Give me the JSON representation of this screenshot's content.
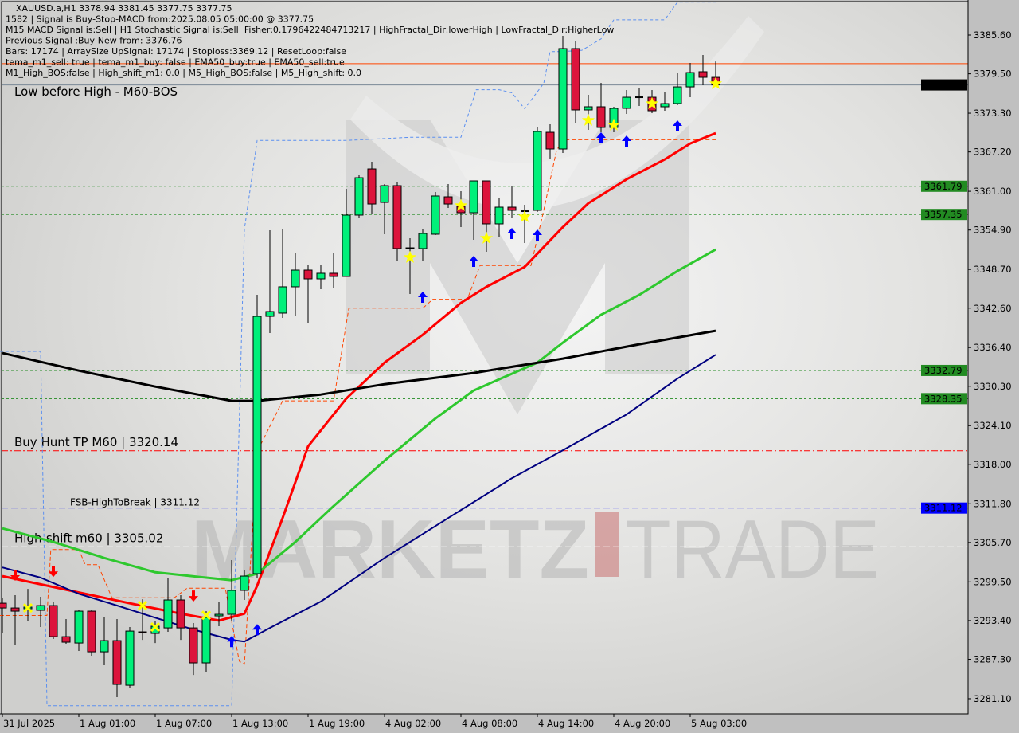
{
  "header": {
    "symbol_line": "XAUUSD.a,H1  3378.94 3381.45 3377.75 3377.75",
    "lines": [
      "1582 | Signal is Buy-Stop-MACD from:2025.08.05 05:00:00 @ 3377.75",
      "M15 MACD Signal is:Sell | H1 Stochastic Signal is:Sell| Fisher:0.1796422484713217 | HighFractal_Dir:lowerHigh | LowFractal_Dir:HigherLow",
      "Previous Signal :Buy-New from: 3376.76",
      "Bars: 17174 | ArraySize UpSignal: 17174 | Stoploss:3369.12 | ResetLoop:false",
      "tema_m1_sell: true | tema_m1_buy: false | EMA50_buy:true | EMA50_sell:true",
      "M1_High_BOS:false | High_shift_m1: 0.0 | M5_High_BOS:false | M5_High_shift: 0.0"
    ],
    "overlay_label": "Low before High - M60-BOS"
  },
  "watermark": {
    "text_left": "MARKETZ",
    "text_right": "TRADE"
  },
  "colors": {
    "bull": "#00f07a",
    "bear": "#dc143c",
    "ema_red": "#ff0000",
    "ema_green": "#2ec82e",
    "ema_navy": "#000080",
    "ema_black": "#000000",
    "level_green": "#228b22",
    "level_blue": "#0000ff",
    "level_red": "#ff0000",
    "stop_orange": "#ff4500",
    "envelope_blue": "#5b8ff0"
  },
  "chart_data": {
    "type": "candlestick",
    "symbol": "XAUUSD.a",
    "timeframe": "H1",
    "ylim": [
      3278.0,
      3391.0
    ],
    "grid": false,
    "y_ticks": [
      "3385.60",
      "3379.50",
      "3373.30",
      "3367.20",
      "3361.00",
      "3354.90",
      "3348.70",
      "3342.60",
      "3336.40",
      "3330.30",
      "3324.10",
      "3318.00",
      "3311.80",
      "3305.70",
      "3299.50",
      "3293.40",
      "3287.30",
      "3281.10"
    ],
    "x_labels": [
      {
        "bar": 0,
        "label": "31 Jul 2025"
      },
      {
        "bar": 6,
        "label": "1 Aug 01:00"
      },
      {
        "bar": 12,
        "label": "1 Aug 07:00"
      },
      {
        "bar": 18,
        "label": "1 Aug 13:00"
      },
      {
        "bar": 24,
        "label": "1 Aug 19:00"
      },
      {
        "bar": 30,
        "label": "4 Aug 02:00"
      },
      {
        "bar": 36,
        "label": "4 Aug 08:00"
      },
      {
        "bar": 42,
        "label": "4 Aug 14:00"
      },
      {
        "bar": 48,
        "label": "4 Aug 20:00"
      },
      {
        "bar": 54,
        "label": "5 Aug 03:00"
      }
    ],
    "candles": [
      [
        3296.14,
        3297.02,
        3291.38,
        3295.39
      ],
      [
        3295.39,
        3297.4,
        3289.62,
        3294.89
      ],
      [
        3295.27,
        3298.4,
        3293.26,
        3295.52
      ],
      [
        3295.02,
        3297.15,
        3292.38,
        3295.77
      ],
      [
        3295.77,
        3296.4,
        3290.5,
        3290.87
      ],
      [
        3290.87,
        3293.64,
        3289.75,
        3290.0
      ],
      [
        3289.87,
        3295.14,
        3288.62,
        3294.89
      ],
      [
        3294.89,
        3295.02,
        3287.87,
        3288.49
      ],
      [
        3288.49,
        3293.89,
        3286.36,
        3290.25
      ],
      [
        3290.25,
        3293.64,
        3281.34,
        3283.35
      ],
      [
        3283.22,
        3292.38,
        3282.85,
        3291.75
      ],
      [
        3291.63,
        3296.77,
        3290.37,
        3291.5
      ],
      [
        3291.38,
        3293.26,
        3289.87,
        3292.51
      ],
      [
        3292.25,
        3300.16,
        3291.63,
        3296.65
      ],
      [
        3296.65,
        3297.4,
        3290.37,
        3292.25
      ],
      [
        3292.25,
        3293.01,
        3284.85,
        3286.74
      ],
      [
        3286.74,
        3294.89,
        3285.36,
        3293.89
      ],
      [
        3294.14,
        3296.4,
        3292.51,
        3294.39
      ],
      [
        3294.39,
        3302.92,
        3293.39,
        3298.16
      ],
      [
        3298.16,
        3301.42,
        3296.65,
        3300.41
      ],
      [
        3300.79,
        3344.7,
        3300.16,
        3341.31
      ],
      [
        3341.31,
        3354.86,
        3338.68,
        3342.07
      ],
      [
        3341.82,
        3354.99,
        3341.06,
        3345.96
      ],
      [
        3345.96,
        3351.23,
        3341.31,
        3348.59
      ],
      [
        3348.59,
        3349.47,
        3340.31,
        3347.21
      ],
      [
        3347.21,
        3349.47,
        3345.58,
        3348.09
      ],
      [
        3348.09,
        3351.35,
        3345.83,
        3347.59
      ],
      [
        3347.59,
        3361.39,
        3347.59,
        3357.25
      ],
      [
        3357.25,
        3363.52,
        3356.87,
        3363.14
      ],
      [
        3364.52,
        3365.65,
        3357.5,
        3359.0
      ],
      [
        3359.25,
        3362.14,
        3354.24,
        3361.89
      ],
      [
        3361.89,
        3362.39,
        3350.1,
        3351.98
      ],
      [
        3352.1,
        3353.61,
        3344.83,
        3351.98
      ],
      [
        3351.98,
        3355.11,
        3349.97,
        3354.36
      ],
      [
        3354.24,
        3360.89,
        3354.11,
        3360.26
      ],
      [
        3360.13,
        3362.14,
        3358.38,
        3359.0
      ],
      [
        3358.63,
        3361.01,
        3355.36,
        3357.62
      ],
      [
        3357.62,
        3362.64,
        3353.36,
        3362.64
      ],
      [
        3362.64,
        3362.64,
        3351.48,
        3355.87
      ],
      [
        3355.87,
        3359.88,
        3353.86,
        3358.5
      ],
      [
        3358.5,
        3361.89,
        3356.87,
        3358.0
      ],
      [
        3357.87,
        3358.88,
        3352.86,
        3357.87
      ],
      [
        3358.0,
        3371.05,
        3357.75,
        3370.42
      ],
      [
        3370.29,
        3371.55,
        3366.03,
        3367.66
      ],
      [
        3367.66,
        3385.47,
        3367.03,
        3383.47
      ],
      [
        3383.47,
        3384.72,
        3371.67,
        3373.81
      ],
      [
        3373.81,
        3376.19,
        3370.67,
        3374.31
      ],
      [
        3374.31,
        3378.07,
        3370.29,
        3371.05
      ],
      [
        3371.05,
        3374.31,
        3370.29,
        3374.06
      ],
      [
        3374.06,
        3376.94,
        3373.18,
        3375.81
      ],
      [
        3375.81,
        3377.19,
        3374.43,
        3375.81
      ],
      [
        3375.81,
        3376.94,
        3373.3,
        3373.68
      ],
      [
        3374.31,
        3376.56,
        3373.68,
        3374.81
      ],
      [
        3374.81,
        3379.7,
        3374.56,
        3377.44
      ],
      [
        3377.44,
        3381.21,
        3375.81,
        3379.7
      ],
      [
        3379.83,
        3382.46,
        3377.69,
        3378.95
      ],
      [
        3378.94,
        3381.45,
        3377.75,
        3377.75
      ]
    ],
    "candle_fields": [
      "open",
      "high",
      "low",
      "close"
    ],
    "moving_averages": [
      {
        "color": "#ff0000",
        "points": [
          [
            0,
            3300.4
          ],
          [
            10,
            3296.12
          ],
          [
            14,
            3294.5
          ],
          [
            17,
            3293.4
          ],
          [
            19,
            3294.5
          ],
          [
            20,
            3298.9
          ],
          [
            22,
            3309.55
          ],
          [
            24,
            3320.84
          ],
          [
            27,
            3328.37
          ],
          [
            30,
            3334.02
          ],
          [
            33,
            3338.41
          ],
          [
            36,
            3343.43
          ],
          [
            38,
            3345.96
          ],
          [
            41,
            3349.08
          ],
          [
            44,
            3355.35
          ],
          [
            46,
            3359.12
          ],
          [
            49,
            3362.88
          ],
          [
            52,
            3366.02
          ],
          [
            54,
            3368.53
          ],
          [
            56,
            3370.16
          ]
        ]
      },
      {
        "color": "#2ec82e",
        "points": [
          [
            0,
            3307.92
          ],
          [
            4,
            3305.78
          ],
          [
            8,
            3303.27
          ],
          [
            12,
            3301.01
          ],
          [
            16,
            3300.16
          ],
          [
            18,
            3299.76
          ],
          [
            20,
            3300.79
          ],
          [
            23,
            3305.78
          ],
          [
            26,
            3311.43
          ],
          [
            30,
            3318.58
          ],
          [
            34,
            3325.23
          ],
          [
            37,
            3329.63
          ],
          [
            42,
            3334.02
          ],
          [
            44,
            3337.16
          ],
          [
            47,
            3341.55
          ],
          [
            50,
            3344.69
          ],
          [
            53,
            3348.45
          ],
          [
            56,
            3351.84
          ]
        ]
      },
      {
        "color": "#000080",
        "points": [
          [
            0,
            3301.77
          ],
          [
            3,
            3300.16
          ],
          [
            6,
            3297.62
          ],
          [
            9,
            3295.77
          ],
          [
            12,
            3293.86
          ],
          [
            15,
            3291.98
          ],
          [
            18,
            3290.37
          ],
          [
            19,
            3290.1
          ],
          [
            21,
            3292.25
          ],
          [
            25,
            3296.4
          ],
          [
            30,
            3303.27
          ],
          [
            35,
            3309.55
          ],
          [
            40,
            3315.82
          ],
          [
            44,
            3320.22
          ],
          [
            49,
            3325.86
          ],
          [
            53,
            3331.51
          ],
          [
            56,
            3335.27
          ]
        ]
      },
      {
        "color": "#000000",
        "points": [
          [
            0,
            3335.53
          ],
          [
            6,
            3332.76
          ],
          [
            12,
            3330.25
          ],
          [
            18,
            3328.0
          ],
          [
            20,
            3328.0
          ],
          [
            25,
            3329.0
          ],
          [
            30,
            3330.63
          ],
          [
            37,
            3332.39
          ],
          [
            44,
            3334.65
          ],
          [
            50,
            3336.91
          ],
          [
            56,
            3339.04
          ]
        ]
      }
    ],
    "stop_line": [
      [
        -0.2,
        3294.2
      ],
      [
        3.5,
        3294.2
      ],
      [
        3.8,
        3304.6
      ],
      [
        6,
        3304.6
      ],
      [
        6.5,
        3302.2
      ],
      [
        7.5,
        3302.2
      ],
      [
        8.6,
        3297.0
      ],
      [
        13.5,
        3297.0
      ],
      [
        14.5,
        3298.5
      ],
      [
        17.5,
        3298.5
      ],
      [
        18.6,
        3287.0
      ],
      [
        19,
        3286.5
      ],
      [
        20,
        3320.0
      ],
      [
        22,
        3328.0
      ],
      [
        26,
        3328.0
      ],
      [
        27.2,
        3342.6
      ],
      [
        33,
        3342.6
      ],
      [
        33.8,
        3344.0
      ],
      [
        36.5,
        3344.0
      ],
      [
        37.5,
        3349.3
      ],
      [
        41.5,
        3349.3
      ],
      [
        42.5,
        3358.0
      ],
      [
        43.5,
        3367.4
      ],
      [
        44,
        3369.12
      ],
      [
        56,
        3369.12
      ]
    ],
    "envelope_line": [
      [
        -0.2,
        3335.8
      ],
      [
        3,
        3335.8
      ],
      [
        3.5,
        3280.0
      ],
      [
        18,
        3280.0
      ],
      [
        19,
        3355.0
      ],
      [
        20,
        3369.0
      ],
      [
        27,
        3369.0
      ],
      [
        32,
        3369.5
      ],
      [
        36,
        3369.5
      ],
      [
        37.2,
        3377.0
      ],
      [
        39,
        3377.0
      ],
      [
        40,
        3376.5
      ],
      [
        41,
        3374.0
      ],
      [
        42.5,
        3378.0
      ],
      [
        43,
        3383.0
      ],
      [
        44,
        3383.0
      ],
      [
        45.5,
        3383.2
      ],
      [
        47,
        3385.0
      ],
      [
        48,
        3388.0
      ],
      [
        52,
        3388.0
      ],
      [
        53,
        3390.8
      ],
      [
        56,
        3390.8
      ]
    ],
    "levels": [
      {
        "price": 3381.1,
        "color": "#ff4500",
        "style": "solid"
      },
      {
        "price": 3377.75,
        "color": "#7a8896",
        "style": "solid",
        "badge": "3377.75",
        "badge_bg": "#000000"
      },
      {
        "price": 3361.79,
        "color": "#228b22",
        "style": "dotted",
        "badge": "3361.79",
        "badge_bg": "#228b22"
      },
      {
        "price": 3357.35,
        "color": "#228b22",
        "style": "dotted",
        "badge": "3357.35",
        "badge_bg": "#228b22"
      },
      {
        "price": 3332.79,
        "color": "#228b22",
        "style": "dotted",
        "badge": "3332.79",
        "badge_bg": "#228b22"
      },
      {
        "price": 3328.35,
        "color": "#228b22",
        "style": "dotted",
        "badge": "3328.35",
        "badge_bg": "#228b22"
      },
      {
        "price": 3320.14,
        "color": "#ff0000",
        "style": "dashdot",
        "label": "Buy Hunt TP M60 | 3320.14"
      },
      {
        "price": 3311.12,
        "color": "#0000ff",
        "style": "dashed",
        "label": "FSB-HighToBreak | 3311.12",
        "badge": "3311.12",
        "badge_bg": "#0000ff"
      },
      {
        "price": 3305.02,
        "color": "#ffffff",
        "style": "dashed",
        "label": "High-shift m60 | 3305.02"
      }
    ],
    "markers": {
      "buy_arrows": [
        [
          18,
          3290.1
        ],
        [
          20,
          3291.98
        ],
        [
          33,
          3344.32
        ],
        [
          37,
          3349.97
        ],
        [
          40,
          3354.36
        ],
        [
          42,
          3354.11
        ],
        [
          47,
          3369.41
        ],
        [
          49,
          3368.91
        ],
        [
          53,
          3371.3
        ]
      ],
      "sell_arrows": [
        [
          1,
          3300.54
        ],
        [
          4,
          3301.14
        ],
        [
          15,
          3297.27
        ]
      ],
      "cross_marks": [
        [
          2,
          3295.39
        ],
        [
          11,
          3295.77
        ],
        [
          12,
          3292.38
        ],
        [
          16,
          3294.24
        ]
      ],
      "stars": [
        [
          32,
          3350.59
        ],
        [
          36,
          3358.75
        ],
        [
          38,
          3353.6
        ],
        [
          41,
          3356.99
        ],
        [
          46,
          3372.17
        ],
        [
          48,
          3371.42
        ],
        [
          51,
          3374.81
        ],
        [
          56,
          3377.95
        ]
      ]
    }
  }
}
